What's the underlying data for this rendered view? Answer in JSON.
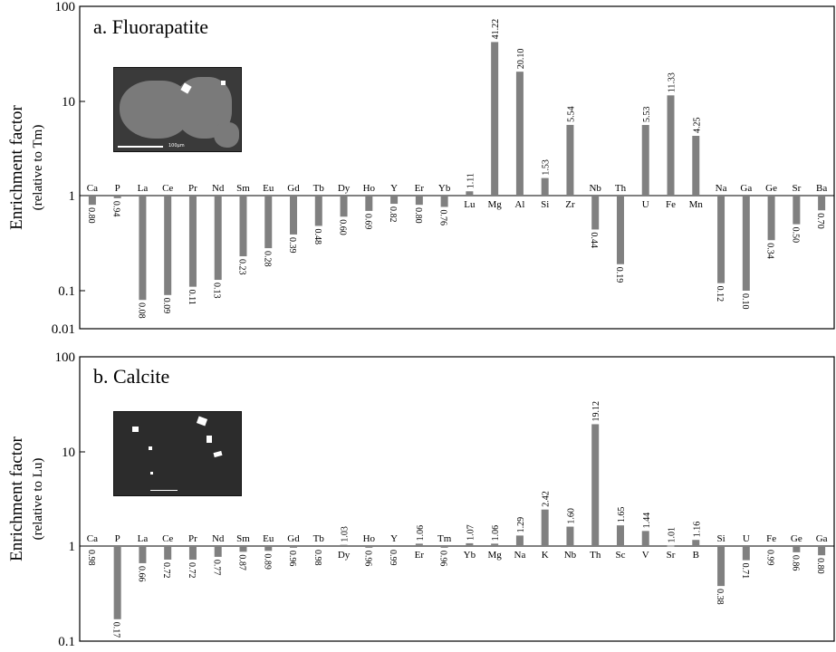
{
  "colors": {
    "bar": "#808080",
    "axis": "#000000",
    "sem_bg": "#333333"
  },
  "chart_data": [
    {
      "type": "bar",
      "panel": "a",
      "title": "a. Fluorapatite",
      "ylabel": "Enrichment factor",
      "ylabel_sub": "(relative to Tm)",
      "yscale": "log",
      "ylim": [
        0.01,
        100
      ],
      "yticks": [
        "100",
        "10",
        "1",
        "0.1",
        "0.01"
      ],
      "baseline": 1,
      "categories": [
        "Ca",
        "P",
        "La",
        "Ce",
        "Pr",
        "Nd",
        "Sm",
        "Eu",
        "Gd",
        "Tb",
        "Dy",
        "Ho",
        "Y",
        "Er",
        "Yb",
        "Lu",
        "Mg",
        "Al",
        "Si",
        "Zr",
        "Nb",
        "Th",
        "U",
        "Fe",
        "Mn",
        "Na",
        "Ga",
        "Ge",
        "Sr",
        "Ba"
      ],
      "values": [
        0.8,
        0.94,
        0.08,
        0.09,
        0.11,
        0.13,
        0.23,
        0.28,
        0.39,
        0.48,
        0.6,
        0.69,
        0.82,
        0.8,
        0.76,
        1.11,
        41.22,
        20.1,
        1.53,
        5.54,
        0.44,
        0.19,
        5.53,
        11.33,
        4.25,
        0.12,
        0.1,
        0.34,
        0.5,
        0.7
      ],
      "value_labels": [
        "0.80",
        "0.94",
        "0.08",
        "0.09",
        "0.11",
        "0.13",
        "0.23",
        "0.28",
        "0.39",
        "0.48",
        "0.60",
        "0.69",
        "0.82",
        "0.80",
        "0.76",
        "1.11",
        "41.22",
        "20.10",
        "1.53",
        "5.54",
        "0.44",
        "0.19",
        "5.53",
        "11.33",
        "4.25",
        "0.12",
        "0.10",
        "0.34",
        "0.50",
        "0.70"
      ],
      "grid": false,
      "inset": {
        "scale_text": "100μm"
      }
    },
    {
      "type": "bar",
      "panel": "b",
      "title": "b. Calcite",
      "ylabel": "Enrichment factor",
      "ylabel_sub": "(relative to Lu)",
      "yscale": "log",
      "ylim": [
        0.1,
        100
      ],
      "yticks": [
        "100",
        "10",
        "1",
        "0.1"
      ],
      "baseline": 1,
      "categories": [
        "Ca",
        "P",
        "La",
        "Ce",
        "Pr",
        "Nd",
        "Sm",
        "Eu",
        "Gd",
        "Tb",
        "Dy",
        "Ho",
        "Y",
        "Er",
        "Tm",
        "Yb",
        "Mg",
        "Na",
        "K",
        "Nb",
        "Th",
        "Sc",
        "V",
        "Sr",
        "B",
        "Si",
        "U",
        "Fe",
        "Ge",
        "Ga"
      ],
      "values": [
        0.98,
        0.17,
        0.66,
        0.72,
        0.72,
        0.77,
        0.87,
        0.89,
        0.96,
        0.98,
        1.03,
        0.96,
        0.99,
        1.06,
        0.96,
        1.07,
        1.06,
        1.29,
        2.42,
        1.6,
        19.12,
        1.65,
        1.44,
        1.01,
        1.16,
        0.38,
        0.71,
        0.99,
        0.86,
        0.8
      ],
      "value_labels": [
        "0.98",
        "0.17",
        "0.66",
        "0.72",
        "0.72",
        "0.77",
        "0.87",
        "0.89",
        "0.96",
        "0.98",
        "1.03",
        "0.96",
        "0.99",
        "1.06",
        "0.96",
        "1.07",
        "1.06",
        "1.29",
        "2.42",
        "1.60",
        "19.12",
        "1.65",
        "1.44",
        "1.01",
        "1.16",
        "0.38",
        "0.71",
        "0.99",
        "0.86",
        "0.80"
      ],
      "grid": false,
      "inset": {
        "scale_text": ""
      }
    }
  ]
}
